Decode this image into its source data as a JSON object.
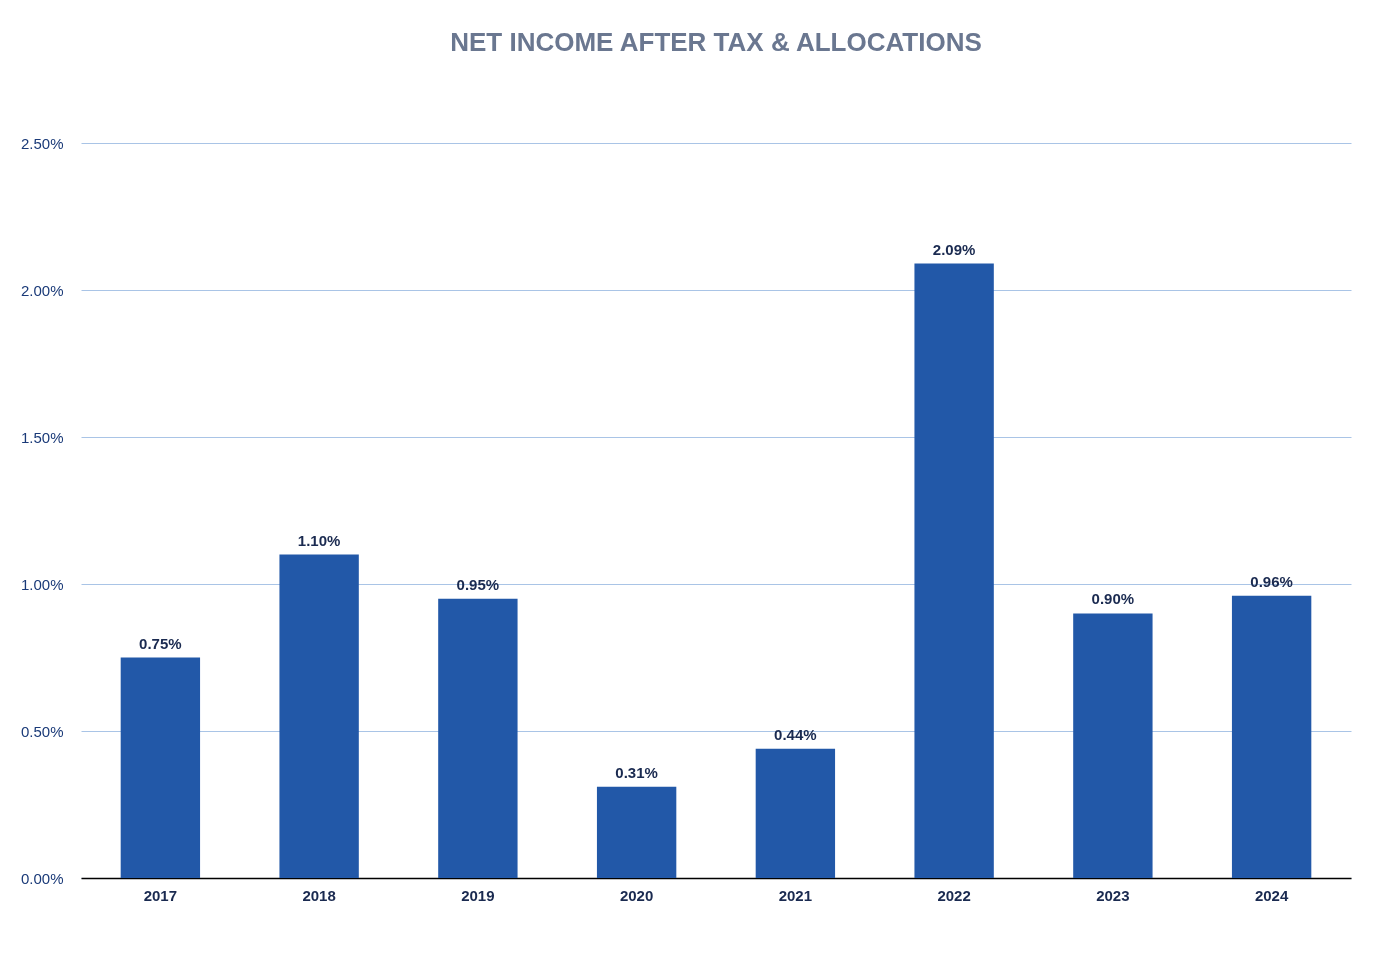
{
  "chart_data": {
    "type": "bar",
    "title": "NET INCOME AFTER TAX & ALLOCATIONS",
    "categories": [
      "2017",
      "2018",
      "2019",
      "2020",
      "2021",
      "2022",
      "2023",
      "2024"
    ],
    "values": [
      0.75,
      1.1,
      0.95,
      0.31,
      0.44,
      2.09,
      0.9,
      0.96
    ],
    "value_labels": [
      "0.75%",
      "1.10%",
      "0.95%",
      "0.31%",
      "0.44%",
      "2.09%",
      "0.90%",
      "0.96%"
    ],
    "color": "#2258a8",
    "ylim": [
      0,
      2.5
    ],
    "yticks": [
      {
        "value": 0,
        "label": "0.00%"
      },
      {
        "value": 0.5,
        "label": "0.50%"
      },
      {
        "value": 1,
        "label": "1.00%"
      },
      {
        "value": 1.5,
        "label": "1.50%"
      },
      {
        "value": 2,
        "label": "2.00%"
      },
      {
        "value": 2.5,
        "label": "2.50%"
      }
    ],
    "grid": "y"
  }
}
